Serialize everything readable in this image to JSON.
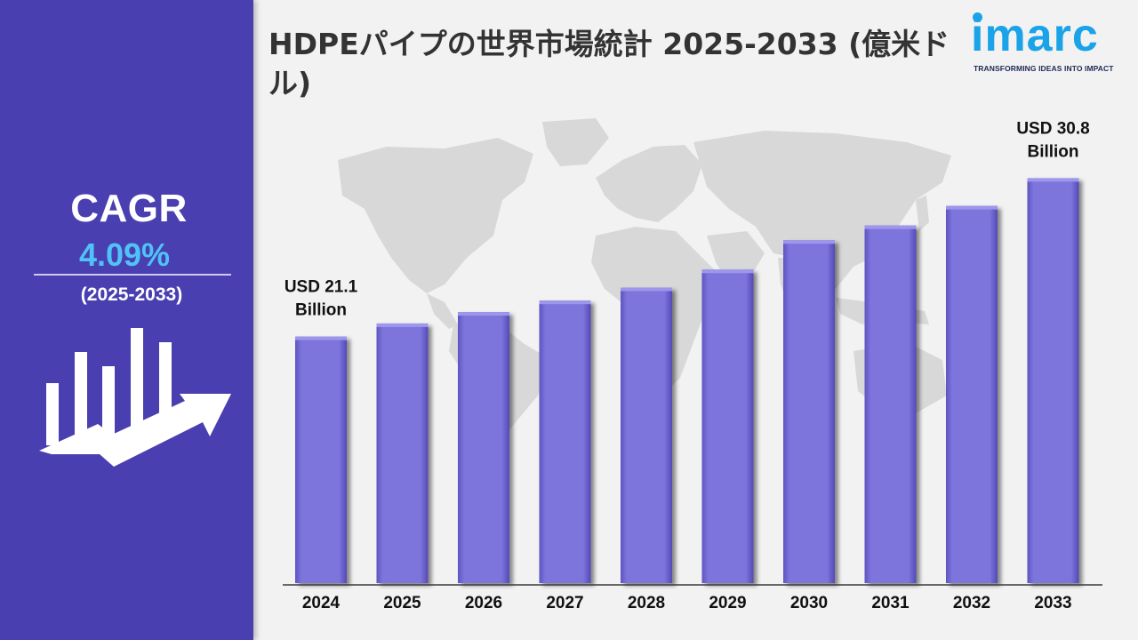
{
  "title": "HDPEパイプの世界市場統計 2025-2033 (億米ドル)",
  "logo": {
    "name": "imarc",
    "tagline": "TRANSFORMING IDEAS INTO IMPACT"
  },
  "cagr": {
    "label": "CAGR",
    "value": "4.09%",
    "period": "(2025-2033)"
  },
  "colors": {
    "panel": "#4a3fb0",
    "bar": "#7d74dc",
    "accent": "#4fc3f7",
    "logo": "#1aa3e8"
  },
  "chart_data": {
    "type": "bar",
    "categories": [
      "2024",
      "2025",
      "2026",
      "2027",
      "2028",
      "2029",
      "2030",
      "2031",
      "2032",
      "2033"
    ],
    "values": [
      21.1,
      21.9,
      22.6,
      23.3,
      24.1,
      25.2,
      27.0,
      27.9,
      29.1,
      30.8
    ],
    "annotations": [
      {
        "category": "2024",
        "line1": "USD 21.1",
        "line2": "Billion"
      },
      {
        "category": "2033",
        "line1": "USD 30.8",
        "line2": "Billion"
      }
    ],
    "ylim": [
      6.0,
      33.0
    ],
    "grid": false,
    "legend": "none"
  }
}
